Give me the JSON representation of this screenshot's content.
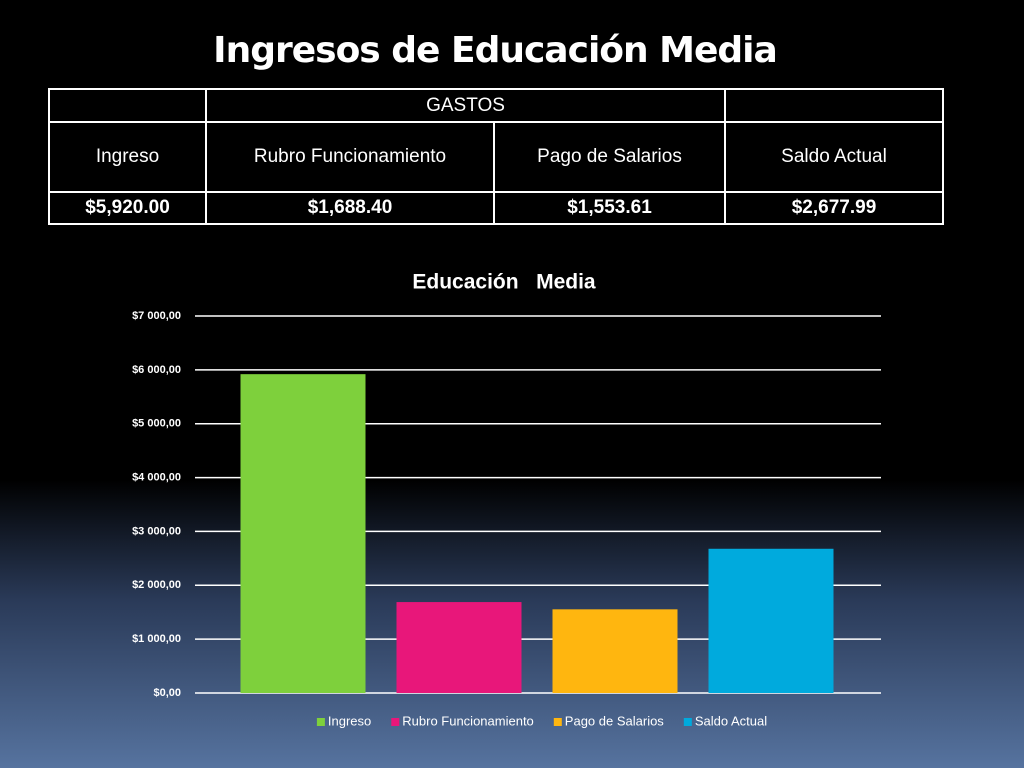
{
  "title": "Ingresos de Educación Media",
  "table": {
    "group_header": "GASTOS",
    "columns": [
      "Ingreso",
      "Rubro Funcionamiento",
      "Pago de Salarios",
      "Saldo Actual"
    ],
    "rows": [
      [
        "$5,920.00",
        "$1,688.40",
        "$1,553.61",
        "$2,677.99"
      ]
    ]
  },
  "chart_data": {
    "type": "bar",
    "title": "Educación   Media",
    "categories": [
      "Ingreso",
      "Rubro Funcionamiento",
      "Pago de Salarios",
      "Saldo Actual"
    ],
    "values": [
      5920,
      1688.4,
      1553.61,
      2677.99
    ],
    "colors": [
      "#7ed03c",
      "#e8177a",
      "#ffb60f",
      "#00aadd"
    ],
    "ylim": [
      0,
      7000
    ],
    "yticks": [
      {
        "value": 0,
        "label": "$0,00"
      },
      {
        "value": 1000,
        "label": "$1 000,00"
      },
      {
        "value": 2000,
        "label": "$2 000,00"
      },
      {
        "value": 3000,
        "label": "$3 000,00"
      },
      {
        "value": 4000,
        "label": "$4 000,00"
      },
      {
        "value": 5000,
        "label": "$5 000,00"
      },
      {
        "value": 6000,
        "label": "$6 000,00"
      },
      {
        "value": 7000,
        "label": "$7 000,00"
      }
    ],
    "grid": true,
    "legend": "bottom"
  }
}
